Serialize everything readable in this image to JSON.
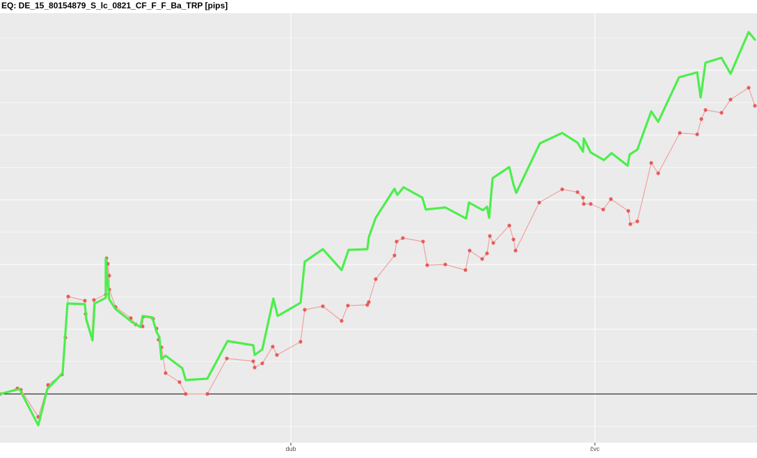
{
  "chart_data": {
    "type": "line",
    "title": "EQ: DE_15_80154879_S_lc_0821_CF_F_F_Ba_TRP [pips]",
    "xlabel": "",
    "ylabel": "",
    "x_tick_labels": [
      {
        "label": "dub",
        "x": 418
      },
      {
        "label": "čvc",
        "x": 855
      }
    ],
    "xlim": [
      0,
      1088
    ],
    "ylim": [
      -80,
      610
    ],
    "grid": true,
    "legend": "none",
    "reference_line": {
      "y": 0,
      "color": "#000000"
    },
    "colors": {
      "panel_background": "#ebebeb",
      "grid": "#ffffff",
      "series_green": "#4cee4c",
      "series_red": "#e84646",
      "series_red_line": "#f0a0a0"
    },
    "series": [
      {
        "values": [
          [
            0,
            0
          ],
          [
            28,
            7
          ],
          [
            55,
            -45
          ],
          [
            68,
            7
          ],
          [
            90,
            30
          ],
          [
            97,
            130
          ],
          [
            122,
            129
          ],
          [
            124,
            107
          ],
          [
            133,
            77
          ],
          [
            136,
            130
          ],
          [
            152,
            138
          ],
          [
            152,
            195
          ],
          [
            157,
            136
          ],
          [
            166,
            122
          ],
          [
            190,
            103
          ],
          [
            202,
            96
          ],
          [
            205,
            112
          ],
          [
            219,
            110
          ],
          [
            225,
            89
          ],
          [
            229,
            82
          ],
          [
            232,
            50
          ],
          [
            238,
            55
          ],
          [
            262,
            37
          ],
          [
            267,
            20
          ],
          [
            298,
            22
          ],
          [
            327,
            76
          ],
          [
            364,
            70
          ],
          [
            366,
            56
          ],
          [
            377,
            64
          ],
          [
            393,
            137
          ],
          [
            399,
            112
          ],
          [
            432,
            131
          ],
          [
            438,
            190
          ],
          [
            464,
            208
          ],
          [
            491,
            178
          ],
          [
            501,
            207
          ],
          [
            528,
            208
          ],
          [
            530,
            225
          ],
          [
            540,
            253
          ],
          [
            567,
            295
          ],
          [
            571,
            286
          ],
          [
            580,
            297
          ],
          [
            607,
            282
          ],
          [
            612,
            265
          ],
          [
            640,
            268
          ],
          [
            670,
            252
          ],
          [
            674,
            275
          ],
          [
            694,
            264
          ],
          [
            700,
            269
          ],
          [
            703,
            253
          ],
          [
            708,
            310
          ],
          [
            732,
            326
          ],
          [
            738,
            301
          ],
          [
            742,
            289
          ],
          [
            776,
            360
          ],
          [
            808,
            375
          ],
          [
            830,
            361
          ],
          [
            838,
            348
          ],
          [
            839,
            367
          ],
          [
            849,
            347
          ],
          [
            868,
            336
          ],
          [
            879,
            346
          ],
          [
            902,
            328
          ],
          [
            905,
            344
          ],
          [
            916,
            351
          ],
          [
            936,
            406
          ],
          [
            946,
            391
          ],
          [
            976,
            455
          ],
          [
            1002,
            462
          ],
          [
            1007,
            426
          ],
          [
            1014,
            476
          ],
          [
            1037,
            483
          ],
          [
            1050,
            460
          ],
          [
            1076,
            520
          ],
          [
            1085,
            509
          ]
        ]
      },
      {
        "values": [
          [
            0,
            0
          ],
          [
            25,
            8
          ],
          [
            30,
            6
          ],
          [
            55,
            -33
          ],
          [
            69,
            13
          ],
          [
            89,
            28
          ],
          [
            94,
            81
          ],
          [
            98,
            140
          ],
          [
            122,
            134
          ],
          [
            123,
            115
          ],
          [
            132,
            84
          ],
          [
            135,
            135
          ],
          [
            152,
            143
          ],
          [
            153,
            195
          ],
          [
            155,
            187
          ],
          [
            157,
            170
          ],
          [
            157,
            150
          ],
          [
            166,
            125
          ],
          [
            188,
            109
          ],
          [
            195,
            100
          ],
          [
            205,
            97
          ],
          [
            206,
            111
          ],
          [
            220,
            108
          ],
          [
            225,
            94
          ],
          [
            228,
            78
          ],
          [
            232,
            67
          ],
          [
            238,
            30
          ],
          [
            258,
            17
          ],
          [
            267,
            0
          ],
          [
            298,
            0
          ],
          [
            326,
            51
          ],
          [
            364,
            47
          ],
          [
            366,
            38
          ],
          [
            377,
            44
          ],
          [
            392,
            68
          ],
          [
            398,
            56
          ],
          [
            432,
            75
          ],
          [
            438,
            121
          ],
          [
            464,
            126
          ],
          [
            491,
            105
          ],
          [
            500,
            127
          ],
          [
            528,
            128
          ],
          [
            530,
            132
          ],
          [
            540,
            165
          ],
          [
            567,
            199
          ],
          [
            570,
            219
          ],
          [
            579,
            224
          ],
          [
            608,
            219
          ],
          [
            614,
            185
          ],
          [
            640,
            186
          ],
          [
            669,
            178
          ],
          [
            675,
            206
          ],
          [
            693,
            194
          ],
          [
            700,
            202
          ],
          [
            704,
            227
          ],
          [
            709,
            217
          ],
          [
            732,
            242
          ],
          [
            738,
            222
          ],
          [
            741,
            206
          ],
          [
            775,
            275
          ],
          [
            808,
            294
          ],
          [
            830,
            290
          ],
          [
            838,
            282
          ],
          [
            839,
            273
          ],
          [
            849,
            273
          ],
          [
            867,
            265
          ],
          [
            878,
            280
          ],
          [
            903,
            263
          ],
          [
            906,
            244
          ],
          [
            916,
            248
          ],
          [
            936,
            332
          ],
          [
            946,
            317
          ],
          [
            977,
            375
          ],
          [
            1002,
            373
          ],
          [
            1008,
            395
          ],
          [
            1014,
            408
          ],
          [
            1037,
            404
          ],
          [
            1050,
            423
          ],
          [
            1076,
            440
          ],
          [
            1085,
            414
          ]
        ]
      }
    ]
  }
}
